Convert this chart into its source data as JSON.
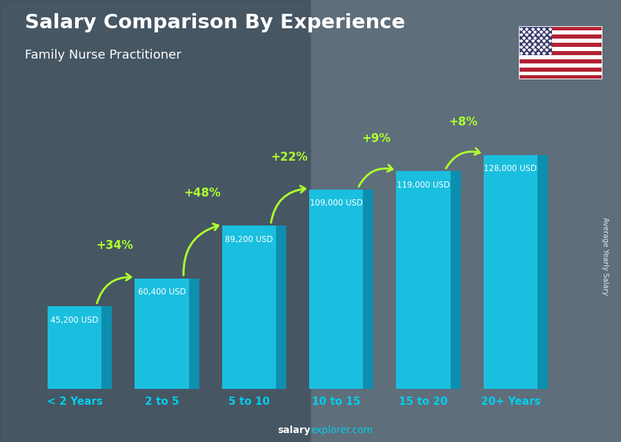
{
  "title": "Salary Comparison By Experience",
  "subtitle": "Family Nurse Practitioner",
  "categories": [
    "< 2 Years",
    "2 to 5",
    "5 to 10",
    "10 to 15",
    "15 to 20",
    "20+ Years"
  ],
  "values": [
    45200,
    60400,
    89200,
    109000,
    119000,
    128000
  ],
  "salary_labels": [
    "45,200 USD",
    "60,400 USD",
    "89,200 USD",
    "109,000 USD",
    "119,000 USD",
    "128,000 USD"
  ],
  "pct_labels": [
    "+34%",
    "+48%",
    "+22%",
    "+9%",
    "+8%"
  ],
  "bar_face_color": "#1ABFDF",
  "bar_right_color": "#0E8FB0",
  "bar_top_color": "#5DD8EE",
  "bg_color": "#5a6a7a",
  "title_color": "#FFFFFF",
  "subtitle_color": "#FFFFFF",
  "salary_label_color": "#FFFFFF",
  "pct_color": "#ADFF2F",
  "xlabel_color": "#00CFEE",
  "footer_bold": "salary",
  "footer_normal": "explorer.com",
  "ylabel_text": "Average Yearly Salary",
  "arrow_color": "#ADFF2F",
  "max_val": 145000,
  "bar_width": 0.62,
  "bar_depth": 0.12
}
